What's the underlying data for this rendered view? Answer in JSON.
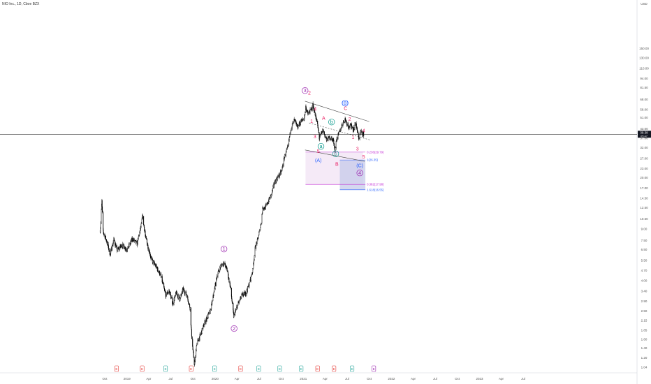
{
  "header": {
    "title": "NIO Inc., 1D, Cboe BZX"
  },
  "colors": {
    "candle": "#000000",
    "price_line": "#000000",
    "fib_pink": "#c026d3",
    "fib_blue": "#2962ff",
    "wave_red": "#e91e63",
    "wave_teal": "#009688",
    "wave_blue": "#2962ff",
    "wave_purple": "#9c27b0",
    "channel": "#444444",
    "event_red": "#e53935",
    "event_teal": "#26a69a",
    "event_purple": "#9c27b0"
  },
  "chart_data": {
    "type": "candlestick",
    "title": "NIO Inc., 1D, Cboe BZX",
    "xlabel": "",
    "ylabel": "",
    "currency": "USD",
    "y_scale": "log",
    "ylim": [
      0.96,
      300
    ],
    "price_ticks": [
      "150.00",
      "130.00",
      "110.00",
      "94.00",
      "81.50",
      "68.00",
      "58.00",
      "51.00",
      "43.00",
      "37.00",
      "32.00",
      "27.00",
      "23.00",
      "20.00",
      "17.00",
      "14.50",
      "12.50",
      "10.50",
      "9.00",
      "7.50",
      "6.50",
      "5.50",
      "4.70",
      "4.00",
      "3.40",
      "2.90",
      "2.50",
      "2.15",
      "1.85",
      "1.60",
      "1.40",
      "1.20",
      "1.04"
    ],
    "price_tick_values": [
      150,
      130,
      110,
      94,
      81.5,
      68,
      58,
      51,
      43,
      37,
      32,
      27,
      23,
      20,
      17,
      14.5,
      12.5,
      10.5,
      9,
      7.5,
      6.5,
      5.5,
      4.7,
      4,
      3.4,
      2.9,
      2.5,
      2.15,
      1.85,
      1.6,
      1.4,
      1.2,
      1.04
    ],
    "time_ticks": [
      "Oct",
      "2019",
      "Apr",
      "Jul",
      "Oct",
      "2020",
      "Apr",
      "Jul",
      "Oct",
      "2021",
      "Apr",
      "Jul",
      "Oct",
      "2022",
      "Apr",
      "Jul",
      "Oct",
      "2023",
      "Apr",
      "Jul"
    ],
    "time_tick_dates": [
      "2018-10-01",
      "2019-01-01",
      "2019-04-01",
      "2019-07-01",
      "2019-10-01",
      "2020-01-01",
      "2020-04-01",
      "2020-07-01",
      "2020-10-01",
      "2021-01-01",
      "2021-04-01",
      "2021-07-01",
      "2021-10-01",
      "2022-01-01",
      "2022-04-01",
      "2022-07-01",
      "2022-10-01",
      "2023-01-01",
      "2023-04-01",
      "2023-07-01"
    ],
    "last_price": "39.38",
    "last_price_value": 39.38,
    "last_price_countdown": "05:47",
    "price_path": [
      [
        "2018-09-12",
        8.8
      ],
      [
        "2018-09-19",
        13.8
      ],
      [
        "2018-09-24",
        8.6
      ],
      [
        "2018-10-08",
        7.5
      ],
      [
        "2018-10-24",
        6.0
      ],
      [
        "2018-11-07",
        7.6
      ],
      [
        "2018-11-22",
        6.4
      ],
      [
        "2018-12-10",
        7.0
      ],
      [
        "2019-01-02",
        6.5
      ],
      [
        "2019-01-24",
        7.7
      ],
      [
        "2019-02-12",
        7.1
      ],
      [
        "2019-03-01",
        9.5
      ],
      [
        "2019-03-07",
        11.0
      ],
      [
        "2019-03-18",
        8.0
      ],
      [
        "2019-04-12",
        5.6
      ],
      [
        "2019-05-01",
        5.0
      ],
      [
        "2019-05-20",
        4.4
      ],
      [
        "2019-06-10",
        3.2
      ],
      [
        "2019-06-25",
        3.4
      ],
      [
        "2019-07-10",
        2.8
      ],
      [
        "2019-07-24",
        3.3
      ],
      [
        "2019-08-08",
        3.0
      ],
      [
        "2019-08-22",
        3.5
      ],
      [
        "2019-09-06",
        3.2
      ],
      [
        "2019-09-20",
        2.6
      ],
      [
        "2019-09-24",
        1.9
      ],
      [
        "2019-10-02",
        1.3
      ],
      [
        "2019-10-08",
        1.07
      ],
      [
        "2019-10-17",
        1.5
      ],
      [
        "2019-11-01",
        1.7
      ],
      [
        "2019-11-20",
        2.1
      ],
      [
        "2019-12-13",
        2.5
      ],
      [
        "2019-12-27",
        3.3
      ],
      [
        "2020-01-10",
        4.4
      ],
      [
        "2020-01-24",
        5.0
      ],
      [
        "2020-02-06",
        5.3
      ],
      [
        "2020-02-19",
        4.8
      ],
      [
        "2020-03-05",
        3.6
      ],
      [
        "2020-03-18",
        2.3
      ],
      [
        "2020-04-06",
        2.8
      ],
      [
        "2020-04-22",
        3.2
      ],
      [
        "2020-05-08",
        3.3
      ],
      [
        "2020-05-22",
        3.8
      ],
      [
        "2020-06-05",
        4.7
      ],
      [
        "2020-06-15",
        6.6
      ],
      [
        "2020-06-26",
        7.6
      ],
      [
        "2020-07-08",
        9.5
      ],
      [
        "2020-07-17",
        12.6
      ],
      [
        "2020-07-28",
        12.5
      ],
      [
        "2020-08-10",
        14.0
      ],
      [
        "2020-08-21",
        15.2
      ],
      [
        "2020-09-04",
        18.6
      ],
      [
        "2020-09-21",
        20.5
      ],
      [
        "2020-10-02",
        22.0
      ],
      [
        "2020-10-16",
        28.0
      ],
      [
        "2020-10-29",
        32.0
      ],
      [
        "2020-11-10",
        43.0
      ],
      [
        "2020-11-24",
        49.0
      ],
      [
        "2020-12-08",
        44.0
      ],
      [
        "2020-12-21",
        48.0
      ],
      [
        "2021-01-04",
        50.0
      ],
      [
        "2021-01-11",
        60.0
      ],
      [
        "2021-01-19",
        54.0
      ],
      [
        "2021-02-01",
        57.0
      ],
      [
        "2021-02-09",
        62.0
      ],
      [
        "2021-02-18",
        55.0
      ],
      [
        "2021-03-01",
        45.0
      ],
      [
        "2021-03-08",
        37.0
      ],
      [
        "2021-03-23",
        42.0
      ],
      [
        "2021-04-07",
        36.0
      ],
      [
        "2021-04-20",
        37.5
      ],
      [
        "2021-05-05",
        36.0
      ],
      [
        "2021-05-12",
        31.0
      ],
      [
        "2021-05-20",
        37.0
      ],
      [
        "2021-06-01",
        41.0
      ],
      [
        "2021-06-11",
        46.0
      ],
      [
        "2021-06-23",
        50.0
      ],
      [
        "2021-07-08",
        44.0
      ],
      [
        "2021-07-19",
        45.0
      ],
      [
        "2021-07-27",
        42.0
      ],
      [
        "2021-08-05",
        47.0
      ],
      [
        "2021-08-19",
        37.0
      ],
      [
        "2021-08-26",
        41.0
      ],
      [
        "2021-09-08",
        39.38
      ]
    ],
    "series": [
      {
        "name": "0.236(29.79)",
        "value": 29.79
      },
      {
        "name": "1(26.35)",
        "value": 26.35
      },
      {
        "name": "0.382(17.98)",
        "value": 17.98
      },
      {
        "name": "1.618(16.55)",
        "value": 16.55
      }
    ],
    "annotations": [
      {
        "text": "1",
        "date": "2020-02-07",
        "price": 6.4,
        "color": "wave_purple",
        "circle": true
      },
      {
        "text": "2",
        "date": "2020-03-20",
        "price": 1.85,
        "color": "wave_purple",
        "circle": true
      },
      {
        "text": "3",
        "date": "2021-01-08",
        "price": 76,
        "color": "wave_purple",
        "circle": true
      },
      {
        "text": "4",
        "date": "2021-08-23",
        "price": 21.0,
        "color": "wave_purple",
        "circle": true
      },
      {
        "text": "(A)",
        "date": "2021-03-04",
        "price": 25.5,
        "color": "wave_blue"
      },
      {
        "text": "(B)",
        "date": "2021-06-23",
        "price": 62.5,
        "color": "wave_blue",
        "circle": true
      },
      {
        "text": "(C)",
        "date": "2021-08-23",
        "price": 23.5,
        "color": "wave_blue"
      },
      {
        "text": "2",
        "date": "2021-01-26",
        "price": 73,
        "color": "wave_red"
      },
      {
        "text": "4",
        "date": "2021-02-19",
        "price": 57,
        "color": "wave_red"
      },
      {
        "text": "1",
        "date": "2021-02-04",
        "price": 47,
        "color": "wave_red"
      },
      {
        "text": "A",
        "date": "2021-03-26",
        "price": 49.5,
        "color": "wave_red"
      },
      {
        "text": "3",
        "date": "2021-02-18",
        "price": 37,
        "color": "wave_red"
      },
      {
        "text": "5",
        "date": "2021-03-04",
        "price": 29.5,
        "color": "wave_red"
      },
      {
        "text": "B",
        "date": "2021-05-20",
        "price": 24.0,
        "color": "wave_red"
      },
      {
        "text": "C",
        "date": "2021-06-25",
        "price": 57.5,
        "color": "wave_red"
      },
      {
        "text": "2",
        "date": "2021-07-12",
        "price": 48.5,
        "color": "wave_red"
      },
      {
        "text": "1",
        "date": "2021-07-26",
        "price": 36.5,
        "color": "wave_red"
      },
      {
        "text": "4",
        "date": "2021-09-08",
        "price": 40.5,
        "color": "wave_red"
      },
      {
        "text": "3",
        "date": "2021-08-13",
        "price": 30.5,
        "color": "wave_red"
      },
      {
        "text": "5",
        "date": "2021-09-08",
        "price": 27.0,
        "color": "wave_red"
      },
      {
        "text": "a",
        "date": "2021-03-15",
        "price": 31.8,
        "color": "wave_teal",
        "circle": true
      },
      {
        "text": "b",
        "date": "2021-04-28",
        "price": 46.5,
        "color": "wave_teal",
        "circle": true
      },
      {
        "text": "c",
        "date": "2021-05-15",
        "price": 28.3,
        "color": "wave_teal",
        "circle": true
      }
    ],
    "event_flags": [
      {
        "date": "2018-11-19",
        "kind": "red",
        "text": "E"
      },
      {
        "date": "2019-03-05",
        "kind": "red",
        "text": "E"
      },
      {
        "date": "2019-06-10",
        "kind": "teal",
        "text": "E"
      },
      {
        "date": "2019-09-24",
        "kind": "red",
        "text": "E"
      },
      {
        "date": "2019-12-30",
        "kind": "teal",
        "text": "E"
      },
      {
        "date": "2020-04-16",
        "kind": "red",
        "text": "E"
      },
      {
        "date": "2020-06-30",
        "kind": "teal",
        "text": "E"
      },
      {
        "date": "2020-09-25",
        "kind": "teal",
        "text": "E"
      },
      {
        "date": "2020-12-23",
        "kind": "teal",
        "text": "E"
      },
      {
        "date": "2021-03-01",
        "kind": "red",
        "text": "E"
      },
      {
        "date": "2021-05-08",
        "kind": "red",
        "text": "E"
      },
      {
        "date": "2021-07-22",
        "kind": "teal",
        "text": "E"
      },
      {
        "date": "2021-10-20",
        "kind": "purple",
        "text": "E"
      }
    ]
  }
}
